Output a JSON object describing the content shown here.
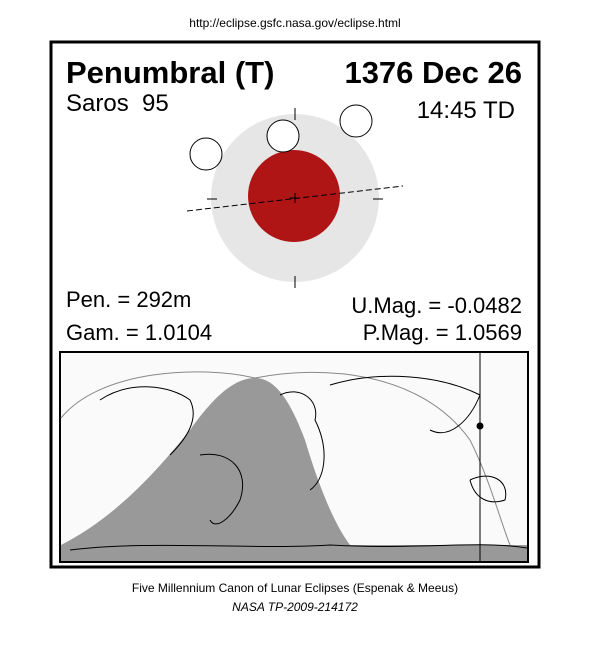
{
  "header": {
    "url": "http://eclipse.gsfc.nasa.gov/eclipse.html"
  },
  "panel": {
    "title": "Penumbral (T)",
    "date": "1376 Dec 26",
    "saros": "Saros  95",
    "time": "14:45 TD",
    "pen": "Pen. = 292m",
    "gam": "Gam. = 1.0104",
    "umag": "U.Mag. = -0.0482",
    "pmag": "P.Mag. = 1.0569"
  },
  "footer": {
    "line1": "Five Millennium Canon of Lunar Eclipses (Espenak & Meeus)",
    "line2": "NASA TP-2009-214172"
  }
}
